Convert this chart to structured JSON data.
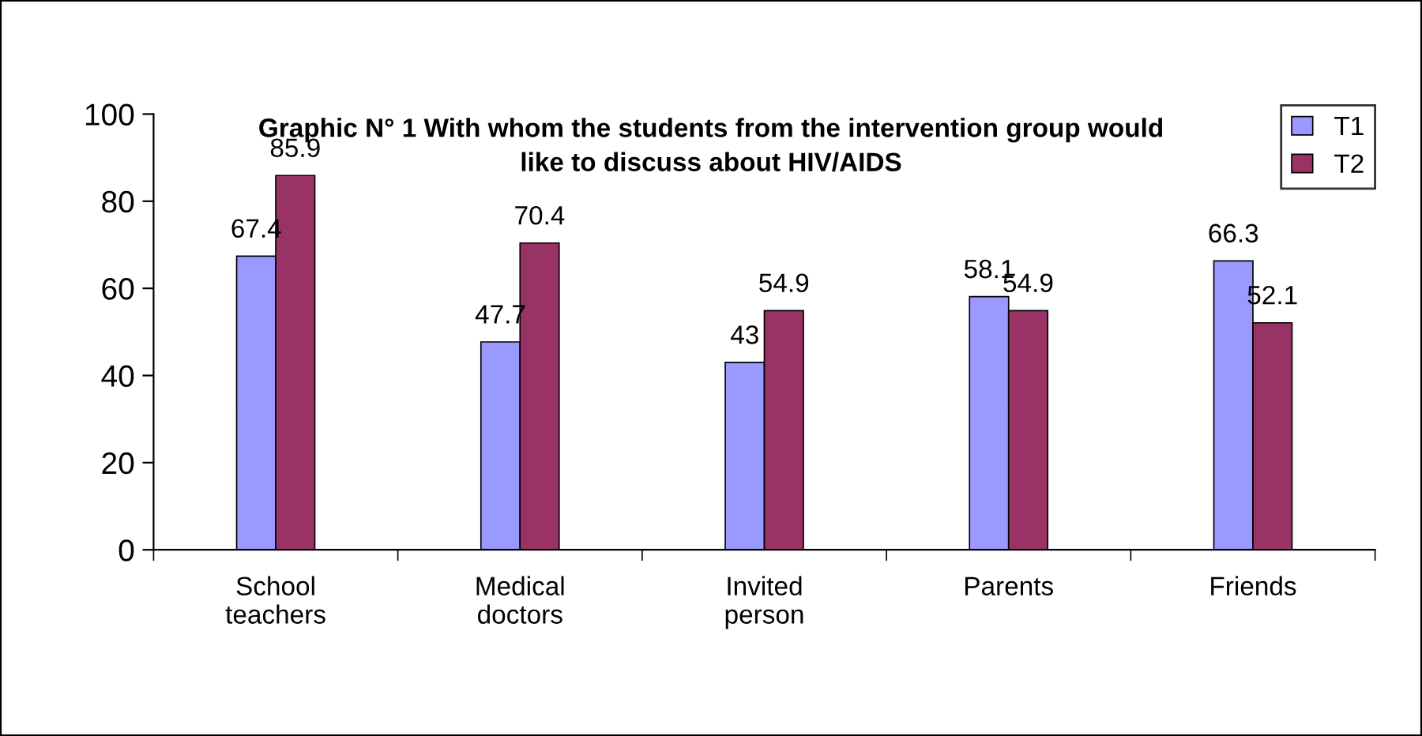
{
  "chart_data": {
    "type": "bar",
    "title": "Graphic N° 1 With whom the students from the intervention group would\nlike to discuss about HIV/AIDS",
    "categories": [
      "School teachers",
      "Medical doctors",
      "Invited person",
      "Parents",
      "Friends"
    ],
    "series": [
      {
        "name": "T1",
        "color": "#9999ff",
        "values": [
          67.4,
          47.7,
          43,
          58.1,
          66.3
        ]
      },
      {
        "name": "T2",
        "color": "#993366",
        "values": [
          85.9,
          70.4,
          54.9,
          54.9,
          52.1
        ]
      }
    ],
    "ylim": [
      0,
      100
    ],
    "yticks": [
      0,
      20,
      40,
      60,
      80,
      100
    ],
    "data_labels": true,
    "grid": false,
    "legend": "top right"
  }
}
